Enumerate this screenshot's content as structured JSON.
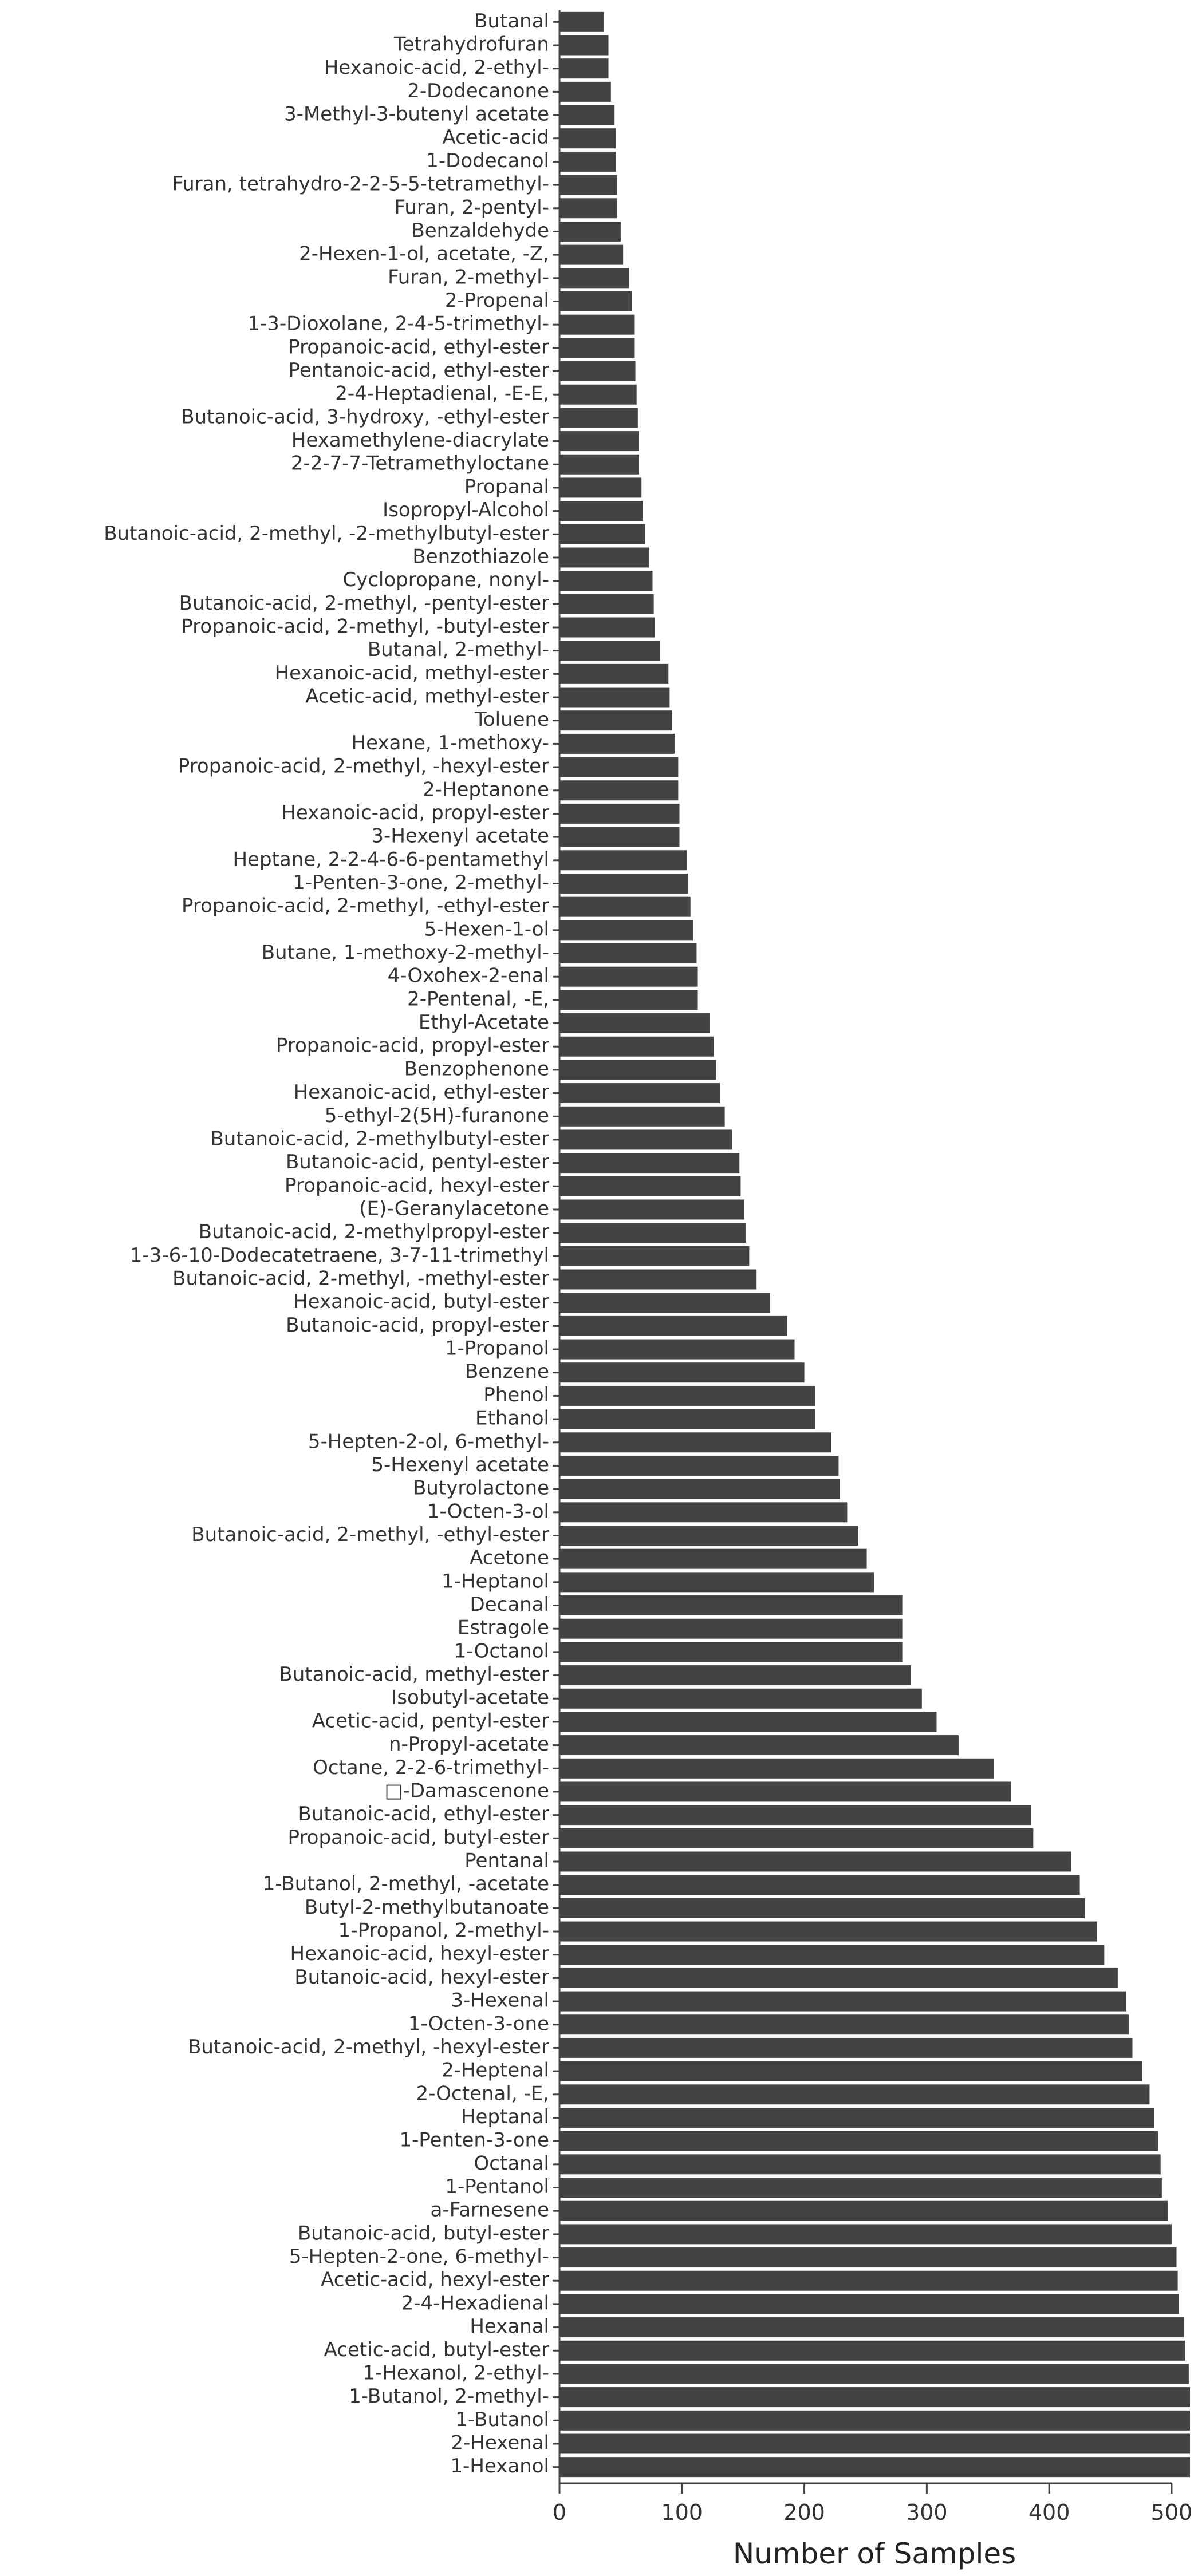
{
  "chart_data": {
    "type": "bar",
    "orientation": "horizontal",
    "xlabel": "Number of Samples",
    "ylabel": "",
    "xlim": [
      0,
      515
    ],
    "xticks": [
      0,
      100,
      200,
      300,
      400,
      500
    ],
    "grid": false,
    "bar_color": "#434343",
    "categories": [
      "Butanal",
      "Tetrahydrofuran",
      "Hexanoic-acid, 2-ethyl-",
      "2-Dodecanone",
      "3-Methyl-3-butenyl acetate",
      "Acetic-acid",
      "1-Dodecanol",
      "Furan, tetrahydro-2-2-5-5-tetramethyl-",
      "Furan, 2-pentyl-",
      "Benzaldehyde",
      "2-Hexen-1-ol, acetate, -Z,",
      "Furan, 2-methyl-",
      "2-Propenal",
      "1-3-Dioxolane, 2-4-5-trimethyl-",
      "Propanoic-acid, ethyl-ester",
      "Pentanoic-acid, ethyl-ester",
      "2-4-Heptadienal, -E-E,",
      "Butanoic-acid, 3-hydroxy, -ethyl-ester",
      "Hexamethylene-diacrylate",
      "2-2-7-7-Tetramethyloctane",
      "Propanal",
      "Isopropyl-Alcohol",
      "Butanoic-acid, 2-methyl, -2-methylbutyl-ester",
      "Benzothiazole",
      "Cyclopropane, nonyl-",
      "Butanoic-acid, 2-methyl, -pentyl-ester",
      "Propanoic-acid, 2-methyl, -butyl-ester",
      "Butanal, 2-methyl-",
      "Hexanoic-acid, methyl-ester",
      "Acetic-acid, methyl-ester",
      "Toluene",
      "Hexane, 1-methoxy-",
      "Propanoic-acid, 2-methyl, -hexyl-ester",
      "2-Heptanone",
      "Hexanoic-acid, propyl-ester",
      "3-Hexenyl acetate",
      "Heptane, 2-2-4-6-6-pentamethyl",
      "1-Penten-3-one, 2-methyl-",
      "Propanoic-acid, 2-methyl, -ethyl-ester",
      "5-Hexen-1-ol",
      "Butane, 1-methoxy-2-methyl-",
      "4-Oxohex-2-enal",
      "2-Pentenal, -E,",
      "Ethyl-Acetate",
      "Propanoic-acid, propyl-ester",
      "Benzophenone",
      "Hexanoic-acid, ethyl-ester",
      "5-ethyl-2(5H)-furanone",
      "Butanoic-acid, 2-methylbutyl-ester",
      "Butanoic-acid, pentyl-ester",
      "Propanoic-acid, hexyl-ester",
      "(E)-Geranylacetone",
      "Butanoic-acid, 2-methylpropyl-ester",
      "1-3-6-10-Dodecatetraene, 3-7-11-trimethyl",
      "Butanoic-acid, 2-methyl, -methyl-ester",
      "Hexanoic-acid, butyl-ester",
      "Butanoic-acid, propyl-ester",
      "1-Propanol",
      "Benzene",
      "Phenol",
      "Ethanol",
      "5-Hepten-2-ol, 6-methyl-",
      "5-Hexenyl acetate",
      "Butyrolactone",
      "1-Octen-3-ol",
      "Butanoic-acid, 2-methyl, -ethyl-ester",
      "Acetone",
      "1-Heptanol",
      "Decanal",
      "Estragole",
      "1-Octanol",
      "Butanoic-acid, methyl-ester",
      "Isobutyl-acetate",
      "Acetic-acid, pentyl-ester",
      "n-Propyl-acetate",
      "Octane, 2-2-6-trimethyl-",
      "□-Damascenone",
      "Butanoic-acid, ethyl-ester",
      "Propanoic-acid, butyl-ester",
      "Pentanal",
      "1-Butanol, 2-methyl, -acetate",
      "Butyl-2-methylbutanoate",
      "1-Propanol, 2-methyl-",
      "Hexanoic-acid, hexyl-ester",
      "Butanoic-acid, hexyl-ester",
      "3-Hexenal",
      "1-Octen-3-one",
      "Butanoic-acid, 2-methyl, -hexyl-ester",
      "2-Heptenal",
      "2-Octenal, -E,",
      "Heptanal",
      "1-Penten-3-one",
      "Octanal",
      "1-Pentanol",
      "a-Farnesene",
      "Butanoic-acid, butyl-ester",
      "5-Hepten-2-one, 6-methyl-",
      "Acetic-acid, hexyl-ester",
      "2-4-Hexadienal",
      "Hexanal",
      "Acetic-acid, butyl-ester",
      "1-Hexanol, 2-ethyl-",
      "1-Butanol, 2-methyl-",
      "1-Butanol",
      "2-Hexenal",
      "1-Hexanol"
    ],
    "values": [
      36,
      40,
      40,
      42,
      45,
      46,
      46,
      47,
      47,
      50,
      52,
      57,
      59,
      61,
      61,
      62,
      63,
      64,
      65,
      65,
      67,
      68,
      70,
      73,
      76,
      77,
      78,
      82,
      89,
      90,
      92,
      94,
      97,
      97,
      98,
      98,
      104,
      105,
      107,
      109,
      112,
      113,
      113,
      123,
      126,
      128,
      131,
      135,
      141,
      147,
      148,
      151,
      152,
      155,
      161,
      172,
      186,
      192,
      200,
      209,
      209,
      222,
      228,
      229,
      235,
      244,
      251,
      257,
      280,
      280,
      280,
      287,
      296,
      308,
      326,
      355,
      369,
      385,
      387,
      418,
      425,
      429,
      439,
      445,
      456,
      463,
      465,
      468,
      476,
      482,
      486,
      489,
      491,
      492,
      497,
      500,
      504,
      505,
      506,
      510,
      511,
      514,
      515,
      515,
      515,
      515
    ]
  }
}
